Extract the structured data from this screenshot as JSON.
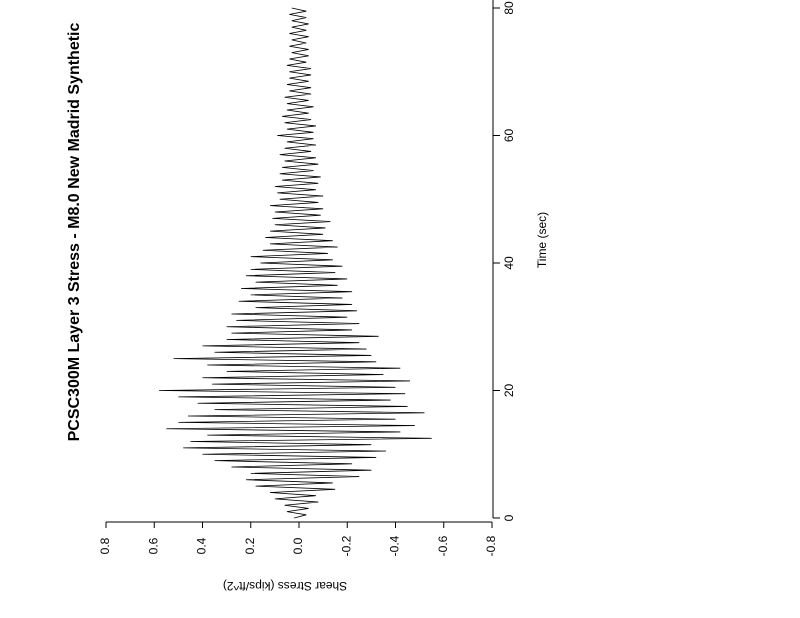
{
  "chart_data": {
    "type": "line",
    "title": "PCSC300M Layer 3 Stress - M8.0 New Madrid Synthetic",
    "x_label": "Time (sec)",
    "y_label": "Shear Stress (kips/ft^2)",
    "color": "#000000",
    "xlim": [
      0,
      80
    ],
    "xticks": [
      0,
      20,
      40,
      60,
      80
    ],
    "ylim": [
      -0.8,
      0.8
    ],
    "yticks": [
      0.8,
      0.6,
      0.4,
      0.2,
      {
        "value": 0,
        "label": "0.0"
      },
      -0.2,
      -0.4,
      -0.6,
      -0.8
    ],
    "x": [
      0,
      0.5,
      1,
      1.5,
      2,
      2.5,
      3,
      3.5,
      4,
      4.5,
      5,
      5.5,
      6,
      6.5,
      7,
      7.5,
      8,
      8.5,
      9,
      9.5,
      10,
      10.5,
      11,
      11.5,
      12,
      12.5,
      13,
      13.5,
      14,
      14.5,
      15,
      15.5,
      16,
      16.5,
      17,
      17.5,
      18,
      18.5,
      19,
      19.5,
      20,
      20.5,
      21,
      21.5,
      22,
      22.5,
      23,
      23.5,
      24,
      24.5,
      25,
      25.5,
      26,
      26.5,
      27,
      27.5,
      28,
      28.5,
      29,
      29.5,
      30,
      30.5,
      31,
      31.5,
      32,
      32.5,
      33,
      33.5,
      34,
      34.5,
      35,
      35.5,
      36,
      36.5,
      37,
      37.5,
      38,
      38.5,
      39,
      39.5,
      40,
      40.5,
      41,
      41.5,
      42,
      42.5,
      43,
      43.5,
      44,
      44.5,
      45,
      45.5,
      46,
      46.5,
      47,
      47.5,
      48,
      48.5,
      49,
      49.5,
      50,
      50.5,
      51,
      51.5,
      52,
      52.5,
      53,
      53.5,
      54,
      54.5,
      55,
      55.5,
      56,
      56.5,
      57,
      57.5,
      58,
      58.5,
      59,
      59.5,
      60,
      60.5,
      61,
      61.5,
      62,
      62.5,
      63,
      63.5,
      64,
      64.5,
      65,
      65.5,
      66,
      66.5,
      67,
      67.5,
      68,
      68.5,
      69,
      69.5,
      70,
      70.5,
      71,
      71.5,
      72,
      72.5,
      73,
      73.5,
      74,
      74.5,
      75,
      75.5,
      76,
      76.5,
      77,
      77.5,
      78,
      78.5,
      79,
      79.5,
      80
    ],
    "values": [
      0.02,
      -0.03,
      0.05,
      -0.04,
      0.06,
      -0.08,
      0.1,
      -0.07,
      0.12,
      -0.15,
      0.18,
      -0.14,
      0.22,
      -0.25,
      0.2,
      -0.3,
      0.28,
      -0.22,
      0.35,
      -0.32,
      0.4,
      -0.36,
      0.48,
      -0.3,
      0.45,
      -0.55,
      0.38,
      -0.42,
      0.55,
      -0.48,
      0.5,
      -0.4,
      0.46,
      -0.52,
      0.35,
      -0.45,
      0.42,
      -0.38,
      0.5,
      -0.44,
      0.58,
      -0.4,
      0.36,
      -0.46,
      0.4,
      -0.35,
      0.3,
      -0.42,
      0.38,
      -0.32,
      0.52,
      -0.3,
      0.35,
      -0.28,
      0.4,
      -0.25,
      0.3,
      -0.33,
      0.28,
      -0.22,
      0.3,
      -0.25,
      0.26,
      -0.2,
      0.28,
      -0.24,
      0.18,
      -0.22,
      0.25,
      -0.18,
      0.2,
      -0.22,
      0.24,
      -0.16,
      0.18,
      -0.2,
      0.22,
      -0.15,
      0.2,
      -0.18,
      0.16,
      -0.14,
      0.2,
      -0.12,
      0.15,
      -0.16,
      0.12,
      -0.14,
      0.14,
      -0.1,
      0.12,
      -0.11,
      0.1,
      -0.13,
      0.11,
      -0.09,
      0.1,
      -0.1,
      0.12,
      -0.08,
      0.08,
      -0.1,
      0.09,
      -0.07,
      0.1,
      -0.08,
      0.07,
      -0.09,
      0.08,
      -0.06,
      0.07,
      -0.08,
      0.06,
      -0.07,
      0.08,
      -0.05,
      0.06,
      -0.07,
      0.05,
      -0.06,
      0.09,
      -0.06,
      0.05,
      -0.07,
      0.06,
      -0.05,
      0.07,
      -0.04,
      0.05,
      -0.06,
      0.05,
      -0.04,
      0.06,
      -0.05,
      0.04,
      -0.05,
      0.05,
      -0.04,
      0.04,
      -0.05,
      0.04,
      -0.05,
      0.05,
      -0.03,
      0.04,
      -0.04,
      0.03,
      -0.04,
      0.04,
      -0.03,
      0.03,
      -0.04,
      0.04,
      -0.03,
      0.03,
      -0.04,
      0.03,
      -0.03,
      0.04,
      -0.03,
      0.03
    ]
  }
}
